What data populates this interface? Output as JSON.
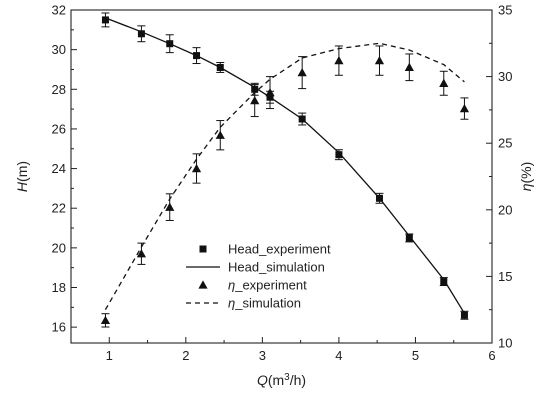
{
  "chart_data": {
    "type": "line",
    "title": "",
    "x_axis": {
      "label_main": "Q",
      "label_unit_open": "(m",
      "label_sup": "3",
      "label_unit_close": "/h)",
      "range": [
        0.5,
        6
      ],
      "ticks": [
        "1",
        "2",
        "3",
        "4",
        "5",
        "6"
      ]
    },
    "y_left": {
      "label_main": "H",
      "label_unit": "(m)",
      "range": [
        15.2,
        32
      ],
      "ticks": [
        "16",
        "18",
        "20",
        "22",
        "24",
        "26",
        "28",
        "30",
        "32"
      ]
    },
    "y_right": {
      "label_main": "η",
      "label_unit": "(%)",
      "range": [
        10,
        35
      ],
      "ticks": [
        "10",
        "15",
        "20",
        "25",
        "30",
        "35"
      ]
    },
    "legend": {
      "placement": "lower-center",
      "entries": [
        {
          "label": "Head_experiment",
          "marker": "square",
          "line": "none"
        },
        {
          "label": "Head_simulation",
          "marker": "none",
          "line": "solid"
        },
        {
          "label_greek": "η",
          "label_rest": "_experiment",
          "marker": "triangle",
          "line": "none"
        },
        {
          "label_greek": "η",
          "label_rest": "_simulation",
          "marker": "none",
          "line": "dashed"
        }
      ]
    },
    "series": [
      {
        "axis": "left",
        "style": "square-errorbar",
        "x": [
          0.95,
          1.42,
          1.79,
          2.14,
          2.45,
          2.9,
          3.1,
          3.52,
          4.0,
          4.53,
          4.92,
          5.37,
          5.64
        ],
        "y": [
          31.5,
          30.8,
          30.3,
          29.7,
          29.1,
          28.0,
          27.6,
          26.5,
          24.7,
          22.5,
          20.5,
          18.3,
          16.6
        ],
        "err": [
          0.35,
          0.4,
          0.45,
          0.4,
          0.25,
          0.3,
          0.3,
          0.3,
          0.25,
          0.25,
          0.2,
          0.2,
          0.2
        ]
      },
      {
        "axis": "left",
        "style": "solid",
        "x": [
          0.95,
          1.42,
          1.79,
          2.14,
          2.45,
          2.9,
          3.1,
          3.52,
          4.0,
          4.53,
          4.92,
          5.37,
          5.64
        ],
        "y": [
          31.6,
          30.9,
          30.3,
          29.7,
          29.1,
          28.1,
          27.6,
          26.5,
          24.8,
          22.5,
          20.6,
          18.4,
          16.7
        ]
      },
      {
        "axis": "right",
        "style": "triangle-errorbar",
        "x": [
          0.95,
          1.42,
          1.79,
          2.14,
          2.45,
          2.9,
          3.1,
          3.52,
          4.0,
          4.53,
          4.92,
          5.37,
          5.64
        ],
        "y": [
          11.7,
          16.7,
          20.2,
          23.1,
          25.6,
          28.2,
          28.8,
          30.3,
          31.2,
          31.2,
          30.7,
          29.5,
          27.6
        ],
        "err": [
          0.5,
          0.8,
          1.0,
          1.1,
          1.1,
          1.2,
          1.2,
          1.2,
          1.1,
          1.1,
          1.0,
          0.9,
          0.8
        ]
      },
      {
        "axis": "right",
        "style": "dashed",
        "x": [
          0.95,
          1.2,
          1.42,
          1.79,
          2.14,
          2.45,
          2.9,
          3.1,
          3.52,
          4.0,
          4.53,
          4.92,
          5.37,
          5.64
        ],
        "y": [
          12.5,
          15.0,
          17.2,
          20.8,
          23.8,
          26.2,
          28.8,
          29.8,
          31.4,
          32.1,
          32.5,
          32.0,
          30.9,
          29.6
        ]
      }
    ]
  }
}
